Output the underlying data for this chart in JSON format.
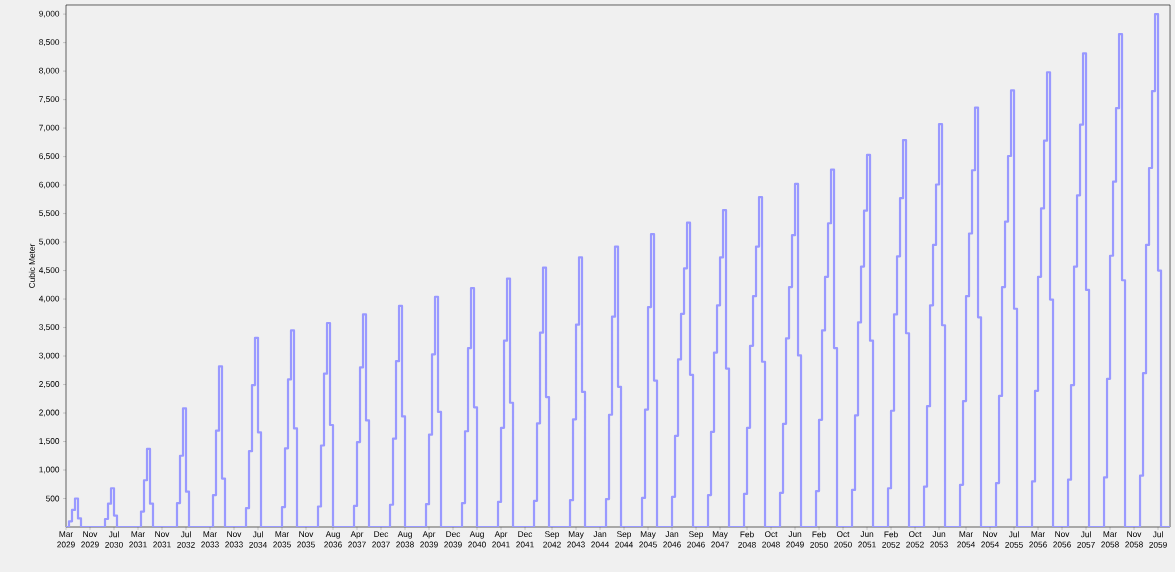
{
  "chart_data": {
    "type": "step",
    "ylabel": "Cubic Meter",
    "xlim": [
      "2029-03",
      "2059-11"
    ],
    "ylim": [
      0,
      9160
    ],
    "xticks": [
      {
        "value": "2029-03",
        "label": "Mar 2029"
      },
      {
        "value": "2029-11",
        "label": "Nov 2029"
      },
      {
        "value": "2030-07",
        "label": "Jul 2030"
      },
      {
        "value": "2031-03",
        "label": "Mar 2031"
      },
      {
        "value": "2031-11",
        "label": "Nov 2031"
      },
      {
        "value": "2032-07",
        "label": "Jul 2032"
      },
      {
        "value": "2033-03",
        "label": "Mar 2033"
      },
      {
        "value": "2033-11",
        "label": "Nov 2033"
      },
      {
        "value": "2034-07",
        "label": "Jul 2034"
      },
      {
        "value": "2035-03",
        "label": "Mar 2035"
      },
      {
        "value": "2035-11",
        "label": "Nov 2035"
      },
      {
        "value": "2036-08",
        "label": "Aug 2036"
      },
      {
        "value": "2037-04",
        "label": "Apr 2037"
      },
      {
        "value": "2037-12",
        "label": "Dec 2037"
      },
      {
        "value": "2038-08",
        "label": "Aug 2038"
      },
      {
        "value": "2039-04",
        "label": "Apr 2039"
      },
      {
        "value": "2039-12",
        "label": "Dec 2039"
      },
      {
        "value": "2040-08",
        "label": "Aug 2040"
      },
      {
        "value": "2041-04",
        "label": "Apr 2041"
      },
      {
        "value": "2041-12",
        "label": "Dec 2041"
      },
      {
        "value": "2042-09",
        "label": "Sep 2042"
      },
      {
        "value": "2043-05",
        "label": "May 2043"
      },
      {
        "value": "2044-01",
        "label": "Jan 2044"
      },
      {
        "value": "2044-09",
        "label": "Sep 2044"
      },
      {
        "value": "2045-05",
        "label": "May 2045"
      },
      {
        "value": "2046-01",
        "label": "Jan 2046"
      },
      {
        "value": "2046-09",
        "label": "Sep 2046"
      },
      {
        "value": "2047-05",
        "label": "May 2047"
      },
      {
        "value": "2048-02",
        "label": "Feb 2048"
      },
      {
        "value": "2048-10",
        "label": "Oct 2048"
      },
      {
        "value": "2049-06",
        "label": "Jun 2049"
      },
      {
        "value": "2050-02",
        "label": "Feb 2050"
      },
      {
        "value": "2050-10",
        "label": "Oct 2050"
      },
      {
        "value": "2051-06",
        "label": "Jun 2051"
      },
      {
        "value": "2052-02",
        "label": "Feb 2052"
      },
      {
        "value": "2052-10",
        "label": "Oct 2052"
      },
      {
        "value": "2053-06",
        "label": "Jun 2053"
      },
      {
        "value": "2054-03",
        "label": "Mar 2054"
      },
      {
        "value": "2054-11",
        "label": "Nov 2054"
      },
      {
        "value": "2055-07",
        "label": "Jul 2055"
      },
      {
        "value": "2056-03",
        "label": "Mar 2056"
      },
      {
        "value": "2056-11",
        "label": "Nov 2056"
      },
      {
        "value": "2057-07",
        "label": "Jul 2057"
      },
      {
        "value": "2058-03",
        "label": "Mar 2058"
      },
      {
        "value": "2058-11",
        "label": "Nov 2058"
      },
      {
        "value": "2059-07",
        "label": "Jul 2059"
      }
    ],
    "yticks": [
      500,
      {
        "value": 1000,
        "label": "1,000"
      },
      {
        "value": 1500,
        "label": "1,500"
      },
      {
        "value": 2000,
        "label": "2,000"
      },
      {
        "value": 2500,
        "label": "2,500"
      },
      {
        "value": 3000,
        "label": "3,000"
      },
      {
        "value": 3500,
        "label": "3,500"
      },
      {
        "value": 4000,
        "label": "4,000"
      },
      {
        "value": 4500,
        "label": "4,500"
      },
      {
        "value": 5000,
        "label": "5,000"
      },
      {
        "value": 5500,
        "label": "5,500"
      },
      {
        "value": 6000,
        "label": "6,000"
      },
      {
        "value": 6500,
        "label": "6,500"
      },
      {
        "value": 7000,
        "label": "7,000"
      },
      {
        "value": 7500,
        "label": "7,500"
      },
      {
        "value": 8000,
        "label": "8,000"
      },
      {
        "value": 8500,
        "label": "8,500"
      },
      {
        "value": 9000,
        "label": "9,000"
      }
    ],
    "series": [
      {
        "color": "#9999ff",
        "x": [
          "2029-03",
          "2029-04",
          "2029-05",
          "2029-06",
          "2029-07",
          "2029-08",
          "2030-04",
          "2030-05",
          "2030-06",
          "2030-07",
          "2030-08",
          "2031-04",
          "2031-05",
          "2031-06",
          "2031-07",
          "2031-08",
          "2032-04",
          "2032-05",
          "2032-06",
          "2032-07",
          "2032-08",
          "2033-04",
          "2033-05",
          "2033-06",
          "2033-07",
          "2033-08",
          "2034-03",
          "2034-04",
          "2034-05",
          "2034-06",
          "2034-07",
          "2034-08",
          "2035-03",
          "2035-04",
          "2035-05",
          "2035-06",
          "2035-07",
          "2035-08",
          "2036-03",
          "2036-04",
          "2036-05",
          "2036-06",
          "2036-07",
          "2036-08",
          "2037-03",
          "2037-04",
          "2037-05",
          "2037-06",
          "2037-07",
          "2037-08",
          "2038-03",
          "2038-04",
          "2038-05",
          "2038-06",
          "2038-07",
          "2038-08",
          "2039-03",
          "2039-04",
          "2039-05",
          "2039-06",
          "2039-07",
          "2039-08",
          "2040-03",
          "2040-04",
          "2040-05",
          "2040-06",
          "2040-07",
          "2040-08",
          "2041-03",
          "2041-04",
          "2041-05",
          "2041-06",
          "2041-07",
          "2041-08",
          "2042-03",
          "2042-04",
          "2042-05",
          "2042-06",
          "2042-07",
          "2042-08",
          "2043-03",
          "2043-04",
          "2043-05",
          "2043-06",
          "2043-07",
          "2043-08",
          "2044-03",
          "2044-04",
          "2044-05",
          "2044-06",
          "2044-07",
          "2044-08",
          "2045-03",
          "2045-04",
          "2045-05",
          "2045-06",
          "2045-07",
          "2045-08",
          "2046-01",
          "2046-02",
          "2046-03",
          "2046-04",
          "2046-05",
          "2046-06",
          "2046-07",
          "2046-08",
          "2047-01",
          "2047-02",
          "2047-03",
          "2047-04",
          "2047-05",
          "2047-06",
          "2047-07",
          "2047-08",
          "2048-01",
          "2048-02",
          "2048-03",
          "2048-04",
          "2048-05",
          "2048-06",
          "2048-07",
          "2048-08",
          "2049-01",
          "2049-02",
          "2049-03",
          "2049-04",
          "2049-05",
          "2049-06",
          "2049-07",
          "2049-08",
          "2050-01",
          "2050-02",
          "2050-03",
          "2050-04",
          "2050-05",
          "2050-06",
          "2050-07",
          "2050-08",
          "2051-01",
          "2051-02",
          "2051-03",
          "2051-04",
          "2051-05",
          "2051-06",
          "2051-07",
          "2051-08",
          "2052-01",
          "2052-02",
          "2052-03",
          "2052-04",
          "2052-05",
          "2052-06",
          "2052-07",
          "2052-08",
          "2053-01",
          "2053-02",
          "2053-03",
          "2053-04",
          "2053-05",
          "2053-06",
          "2053-07",
          "2053-08",
          "2054-01",
          "2054-02",
          "2054-03",
          "2054-04",
          "2054-05",
          "2054-06",
          "2054-07",
          "2054-08",
          "2055-01",
          "2055-02",
          "2055-03",
          "2055-04",
          "2055-05",
          "2055-06",
          "2055-07",
          "2055-08",
          "2056-01",
          "2056-02",
          "2056-03",
          "2056-04",
          "2056-05",
          "2056-06",
          "2056-07",
          "2056-08",
          "2057-01",
          "2057-02",
          "2057-03",
          "2057-04",
          "2057-05",
          "2057-06",
          "2057-07",
          "2057-08",
          "2058-01",
          "2058-02",
          "2058-03",
          "2058-04",
          "2058-05",
          "2058-06",
          "2058-07",
          "2058-08",
          "2059-01",
          "2059-02",
          "2059-03",
          "2059-04",
          "2059-05",
          "2059-06",
          "2059-07",
          "2059-08",
          "2059-11"
        ],
        "values": [
          0,
          100,
          300,
          500,
          150,
          0,
          140,
          410,
          680,
          200,
          0,
          270,
          820,
          1370,
          410,
          0,
          420,
          1250,
          2080,
          620,
          0,
          560,
          1690,
          2820,
          850,
          0,
          330,
          1330,
          2490,
          3320,
          1660,
          0,
          350,
          1380,
          2590,
          3450,
          1730,
          0,
          360,
          1430,
          2690,
          3580,
          1790,
          0,
          370,
          1490,
          2800,
          3730,
          1870,
          0,
          390,
          1550,
          2910,
          3880,
          1940,
          0,
          400,
          1620,
          3030,
          4040,
          2020,
          0,
          420,
          1680,
          3140,
          4190,
          2100,
          0,
          440,
          1740,
          3270,
          4360,
          2180,
          0,
          460,
          1820,
          3410,
          4550,
          2280,
          0,
          470,
          1890,
          3550,
          4730,
          2370,
          0,
          490,
          1970,
          3690,
          4920,
          2460,
          0,
          510,
          2060,
          3860,
          5140,
          2570,
          0,
          530,
          1600,
          2940,
          3740,
          4540,
          5340,
          2670,
          0,
          560,
          1670,
          3060,
          3890,
          4730,
          5560,
          2780,
          0,
          580,
          1740,
          3180,
          4050,
          4920,
          5790,
          2900,
          0,
          600,
          1810,
          3310,
          4210,
          5120,
          6020,
          3010,
          0,
          630,
          1880,
          3450,
          4390,
          5330,
          6270,
          3140,
          0,
          650,
          1960,
          3590,
          4570,
          5550,
          6530,
          3270,
          0,
          680,
          2040,
          3730,
          4750,
          5770,
          6790,
          3400,
          0,
          710,
          2120,
          3890,
          4950,
          6010,
          7070,
          3540,
          0,
          740,
          2210,
          4050,
          5150,
          6260,
          7360,
          3680,
          0,
          770,
          2300,
          4210,
          5360,
          6510,
          7660,
          3830,
          0,
          800,
          2390,
          4390,
          5590,
          6780,
          7980,
          3990,
          0,
          830,
          2490,
          4570,
          5820,
          7060,
          8310,
          4160,
          0,
          870,
          2600,
          4760,
          6060,
          7350,
          8650,
          4330,
          0,
          900,
          2700,
          4950,
          6300,
          7650,
          9000,
          4500,
          0,
          0
        ]
      }
    ]
  }
}
